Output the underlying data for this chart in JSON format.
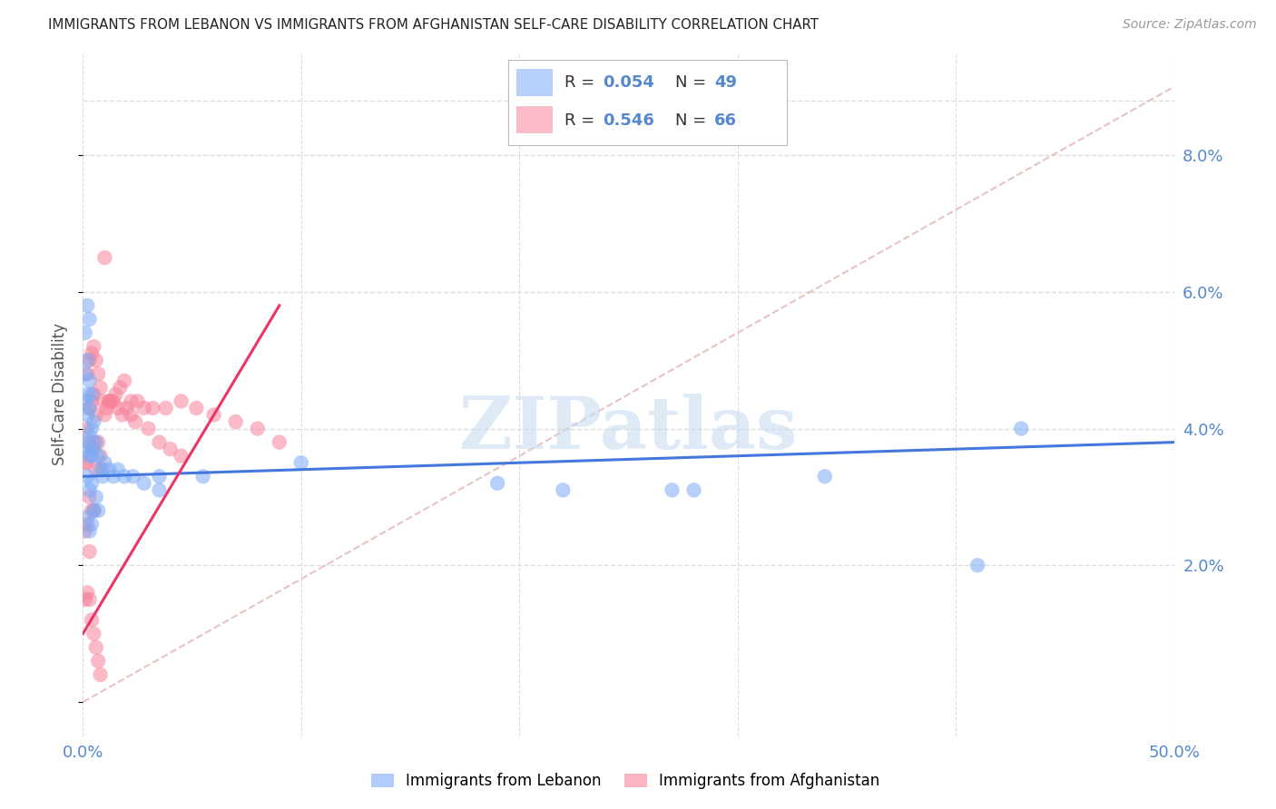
{
  "title": "IMMIGRANTS FROM LEBANON VS IMMIGRANTS FROM AFGHANISTAN SELF-CARE DISABILITY CORRELATION CHART",
  "source": "Source: ZipAtlas.com",
  "ylabel": "Self-Care Disability",
  "xlim": [
    0.0,
    0.5
  ],
  "ylim": [
    -0.005,
    0.095
  ],
  "xticks": [
    0.0,
    0.1,
    0.2,
    0.3,
    0.4,
    0.5
  ],
  "xticklabels": [
    "0.0%",
    "",
    "",
    "",
    "",
    "50.0%"
  ],
  "yticks_right": [
    0.02,
    0.04,
    0.06,
    0.08
  ],
  "ytick_labels_right": [
    "2.0%",
    "4.0%",
    "6.0%",
    "8.0%"
  ],
  "color_lebanon": "#7aabf7",
  "color_afghanistan": "#f7829a",
  "color_trendline_lebanon": "#4477dd",
  "color_trendline_afghanistan": "#ee3366",
  "color_diagonal": "#f0a0b0",
  "watermark": "ZIPatlas",
  "background_color": "#ffffff",
  "grid_color": "#dddddd",
  "title_color": "#222222",
  "axis_color": "#5588cc",
  "lebanon_x": [
    0.001,
    0.001,
    0.001,
    0.001,
    0.002,
    0.002,
    0.002,
    0.002,
    0.002,
    0.002,
    0.002,
    0.003,
    0.003,
    0.003,
    0.003,
    0.003,
    0.003,
    0.003,
    0.004,
    0.004,
    0.004,
    0.004,
    0.004,
    0.005,
    0.005,
    0.005,
    0.006,
    0.006,
    0.007,
    0.007,
    0.008,
    0.009,
    0.01,
    0.012,
    0.014,
    0.016,
    0.019,
    0.023,
    0.028,
    0.035,
    0.19,
    0.22,
    0.27,
    0.34,
    0.41,
    0.43,
    0.035,
    0.055,
    0.1,
    0.28
  ],
  "lebanon_y": [
    0.054,
    0.048,
    0.044,
    0.037,
    0.058,
    0.05,
    0.045,
    0.042,
    0.038,
    0.033,
    0.027,
    0.056,
    0.047,
    0.043,
    0.039,
    0.036,
    0.031,
    0.025,
    0.045,
    0.04,
    0.036,
    0.032,
    0.026,
    0.041,
    0.037,
    0.028,
    0.038,
    0.03,
    0.036,
    0.028,
    0.034,
    0.033,
    0.035,
    0.034,
    0.033,
    0.034,
    0.033,
    0.033,
    0.032,
    0.033,
    0.032,
    0.031,
    0.031,
    0.033,
    0.02,
    0.04,
    0.031,
    0.033,
    0.035,
    0.031
  ],
  "afghanistan_x": [
    0.001,
    0.001,
    0.001,
    0.002,
    0.002,
    0.002,
    0.002,
    0.002,
    0.003,
    0.003,
    0.003,
    0.003,
    0.003,
    0.004,
    0.004,
    0.004,
    0.004,
    0.005,
    0.005,
    0.005,
    0.005,
    0.006,
    0.006,
    0.006,
    0.007,
    0.007,
    0.008,
    0.008,
    0.009,
    0.009,
    0.01,
    0.011,
    0.012,
    0.013,
    0.015,
    0.017,
    0.019,
    0.022,
    0.025,
    0.028,
    0.032,
    0.038,
    0.045,
    0.052,
    0.06,
    0.07,
    0.08,
    0.09,
    0.01,
    0.012,
    0.014,
    0.016,
    0.018,
    0.02,
    0.022,
    0.024,
    0.03,
    0.035,
    0.04,
    0.045,
    0.003,
    0.004,
    0.005,
    0.006,
    0.007,
    0.008
  ],
  "afghanistan_y": [
    0.035,
    0.025,
    0.015,
    0.048,
    0.04,
    0.035,
    0.026,
    0.016,
    0.05,
    0.043,
    0.038,
    0.03,
    0.022,
    0.051,
    0.044,
    0.037,
    0.028,
    0.052,
    0.045,
    0.038,
    0.028,
    0.05,
    0.042,
    0.034,
    0.048,
    0.038,
    0.046,
    0.036,
    0.044,
    0.034,
    0.042,
    0.043,
    0.044,
    0.044,
    0.045,
    0.046,
    0.047,
    0.044,
    0.044,
    0.043,
    0.043,
    0.043,
    0.044,
    0.043,
    0.042,
    0.041,
    0.04,
    0.038,
    0.065,
    0.044,
    0.044,
    0.043,
    0.042,
    0.043,
    0.042,
    0.041,
    0.04,
    0.038,
    0.037,
    0.036,
    0.015,
    0.012,
    0.01,
    0.008,
    0.006,
    0.004
  ],
  "leb_trend_x": [
    0.0,
    0.5
  ],
  "leb_trend_y": [
    0.033,
    0.038
  ],
  "afg_trend_x": [
    0.0,
    0.09
  ],
  "afg_trend_y": [
    0.01,
    0.058
  ]
}
